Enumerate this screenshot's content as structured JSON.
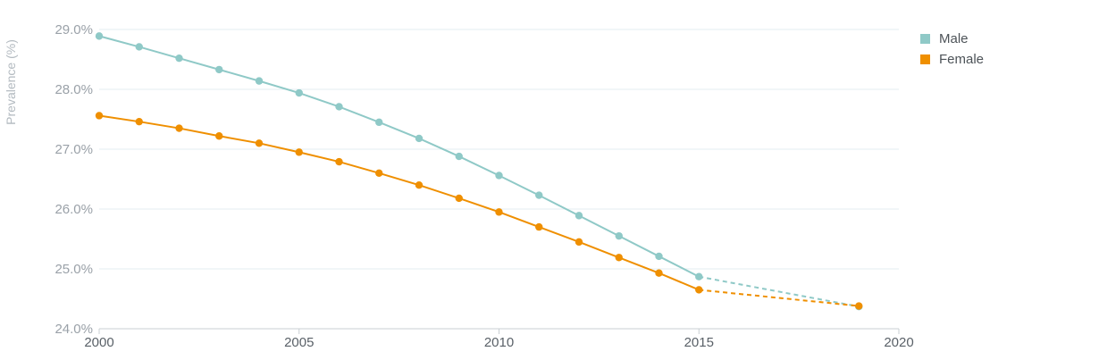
{
  "chart_data": {
    "type": "line",
    "ylabel": "Prevalence (%)",
    "xlabel": "",
    "x_ticks": [
      "2000",
      "2005",
      "2010",
      "2015",
      "2020"
    ],
    "y_ticks": [
      "24.0%",
      "25.0%",
      "26.0%",
      "27.0%",
      "28.0%",
      "29.0%"
    ],
    "xlim": [
      2000,
      2020
    ],
    "ylim": [
      24.0,
      29.0
    ],
    "grid": "horizontal",
    "legend_position": "top-right",
    "series": [
      {
        "name": "Male",
        "color": "#8fc9c7",
        "x": [
          2000,
          2001,
          2002,
          2003,
          2004,
          2005,
          2006,
          2007,
          2008,
          2009,
          2010,
          2011,
          2012,
          2013,
          2014,
          2015,
          2019
        ],
        "y": [
          28.89,
          28.71,
          28.52,
          28.33,
          28.14,
          27.94,
          27.71,
          27.45,
          27.18,
          26.88,
          26.56,
          26.23,
          25.89,
          25.55,
          25.21,
          24.87,
          24.37
        ],
        "projected_from_x": 2015
      },
      {
        "name": "Female",
        "color": "#ef8f00",
        "x": [
          2000,
          2001,
          2002,
          2003,
          2004,
          2005,
          2006,
          2007,
          2008,
          2009,
          2010,
          2011,
          2012,
          2013,
          2014,
          2015,
          2019
        ],
        "y": [
          27.56,
          27.46,
          27.35,
          27.22,
          27.1,
          26.95,
          26.79,
          26.6,
          26.4,
          26.18,
          25.95,
          25.7,
          25.45,
          25.19,
          24.93,
          24.65,
          24.38
        ],
        "projected_from_x": 2015
      }
    ]
  }
}
